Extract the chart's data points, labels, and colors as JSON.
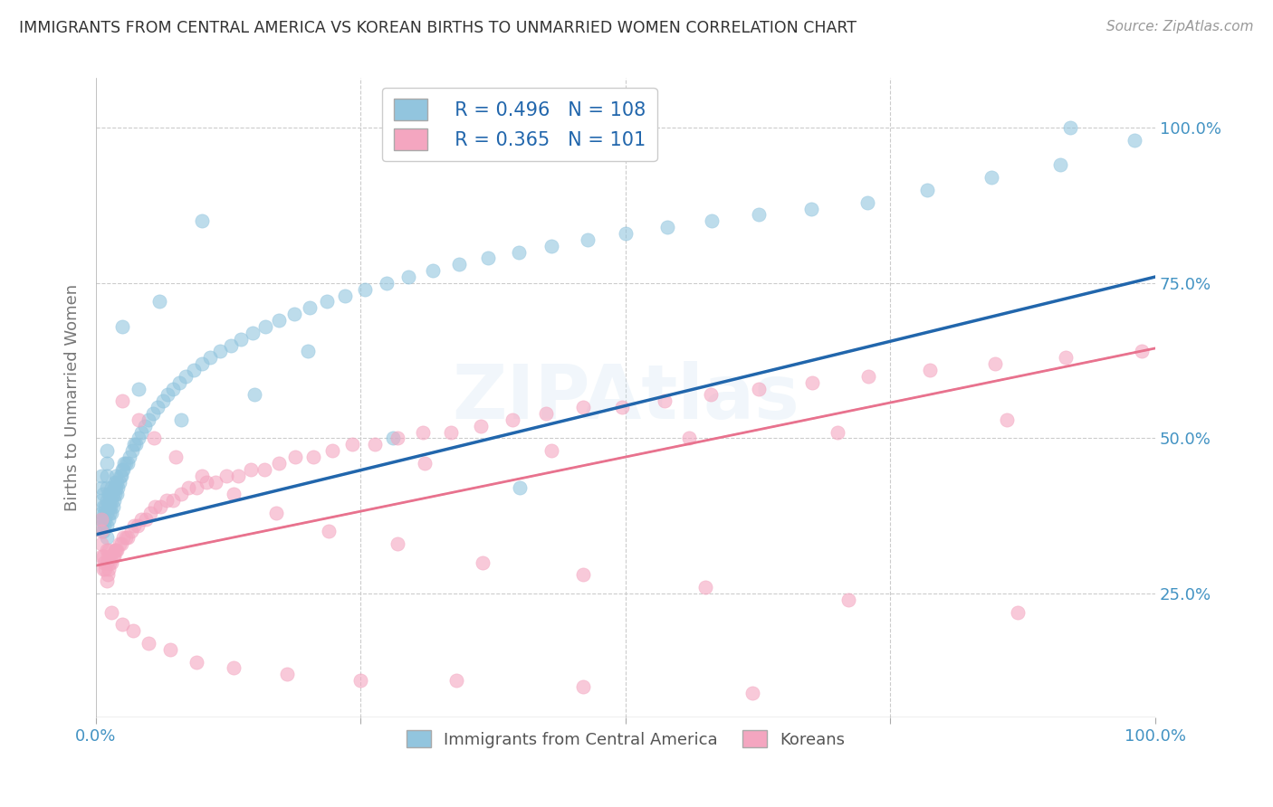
{
  "title": "IMMIGRANTS FROM CENTRAL AMERICA VS KOREAN BIRTHS TO UNMARRIED WOMEN CORRELATION CHART",
  "source": "Source: ZipAtlas.com",
  "ylabel": "Births to Unmarried Women",
  "xlim": [
    0.0,
    1.0
  ],
  "ylim": [
    0.05,
    1.08
  ],
  "x_tick_labels": [
    "0.0%",
    "",
    "",
    "",
    "100.0%"
  ],
  "x_tick_positions": [
    0.0,
    0.25,
    0.5,
    0.75,
    1.0
  ],
  "y_tick_labels_right": [
    "100.0%",
    "75.0%",
    "50.0%",
    "25.0%"
  ],
  "y_tick_positions_right": [
    1.0,
    0.75,
    0.5,
    0.25
  ],
  "blue_R": 0.496,
  "blue_N": 108,
  "pink_R": 0.365,
  "pink_N": 101,
  "blue_color": "#92c5de",
  "pink_color": "#f4a6c0",
  "blue_line_color": "#2166ac",
  "pink_line_color": "#e8728e",
  "axis_label_color": "#4393c3",
  "grid_color": "#cccccc",
  "background_color": "#ffffff",
  "title_color": "#333333",
  "legend_label_blue": "Immigrants from Central America",
  "legend_label_pink": "Koreans",
  "blue_line_start_y": 0.345,
  "blue_line_end_y": 0.76,
  "pink_line_start_y": 0.295,
  "pink_line_end_y": 0.645,
  "blue_points_x": [
    0.005,
    0.005,
    0.005,
    0.005,
    0.005,
    0.005,
    0.007,
    0.007,
    0.007,
    0.007,
    0.008,
    0.008,
    0.009,
    0.009,
    0.01,
    0.01,
    0.01,
    0.01,
    0.01,
    0.01,
    0.01,
    0.01,
    0.012,
    0.012,
    0.012,
    0.013,
    0.013,
    0.014,
    0.014,
    0.015,
    0.015,
    0.015,
    0.016,
    0.016,
    0.017,
    0.017,
    0.018,
    0.018,
    0.019,
    0.019,
    0.02,
    0.02,
    0.021,
    0.022,
    0.023,
    0.024,
    0.025,
    0.026,
    0.027,
    0.028,
    0.03,
    0.032,
    0.034,
    0.036,
    0.038,
    0.04,
    0.043,
    0.046,
    0.05,
    0.054,
    0.058,
    0.063,
    0.068,
    0.073,
    0.079,
    0.085,
    0.092,
    0.1,
    0.108,
    0.117,
    0.127,
    0.137,
    0.148,
    0.16,
    0.173,
    0.187,
    0.202,
    0.218,
    0.235,
    0.254,
    0.274,
    0.295,
    0.318,
    0.343,
    0.37,
    0.399,
    0.43,
    0.464,
    0.5,
    0.539,
    0.581,
    0.626,
    0.675,
    0.728,
    0.785,
    0.845,
    0.91,
    0.98,
    0.025,
    0.04,
    0.06,
    0.08,
    0.1,
    0.15,
    0.2,
    0.28,
    0.4,
    0.92
  ],
  "blue_points_y": [
    0.36,
    0.37,
    0.38,
    0.4,
    0.42,
    0.44,
    0.35,
    0.37,
    0.39,
    0.41,
    0.36,
    0.38,
    0.37,
    0.39,
    0.34,
    0.36,
    0.38,
    0.4,
    0.42,
    0.44,
    0.46,
    0.48,
    0.37,
    0.39,
    0.41,
    0.38,
    0.4,
    0.39,
    0.41,
    0.38,
    0.4,
    0.42,
    0.39,
    0.41,
    0.4,
    0.42,
    0.41,
    0.43,
    0.42,
    0.44,
    0.41,
    0.43,
    0.42,
    0.43,
    0.44,
    0.44,
    0.45,
    0.45,
    0.46,
    0.46,
    0.46,
    0.47,
    0.48,
    0.49,
    0.49,
    0.5,
    0.51,
    0.52,
    0.53,
    0.54,
    0.55,
    0.56,
    0.57,
    0.58,
    0.59,
    0.6,
    0.61,
    0.62,
    0.63,
    0.64,
    0.65,
    0.66,
    0.67,
    0.68,
    0.69,
    0.7,
    0.71,
    0.72,
    0.73,
    0.74,
    0.75,
    0.76,
    0.77,
    0.78,
    0.79,
    0.8,
    0.81,
    0.82,
    0.83,
    0.84,
    0.85,
    0.86,
    0.87,
    0.88,
    0.9,
    0.92,
    0.94,
    0.98,
    0.68,
    0.58,
    0.72,
    0.53,
    0.85,
    0.57,
    0.64,
    0.5,
    0.42,
    1.0
  ],
  "pink_points_x": [
    0.005,
    0.005,
    0.005,
    0.005,
    0.007,
    0.007,
    0.008,
    0.009,
    0.01,
    0.01,
    0.01,
    0.011,
    0.011,
    0.012,
    0.012,
    0.013,
    0.014,
    0.015,
    0.016,
    0.017,
    0.018,
    0.019,
    0.02,
    0.022,
    0.024,
    0.026,
    0.028,
    0.03,
    0.033,
    0.036,
    0.039,
    0.043,
    0.047,
    0.051,
    0.056,
    0.061,
    0.067,
    0.073,
    0.08,
    0.087,
    0.095,
    0.104,
    0.113,
    0.123,
    0.134,
    0.146,
    0.159,
    0.173,
    0.188,
    0.205,
    0.223,
    0.242,
    0.263,
    0.285,
    0.309,
    0.335,
    0.363,
    0.393,
    0.425,
    0.46,
    0.497,
    0.537,
    0.58,
    0.626,
    0.676,
    0.729,
    0.787,
    0.849,
    0.915,
    0.987,
    0.015,
    0.025,
    0.035,
    0.05,
    0.07,
    0.095,
    0.13,
    0.18,
    0.25,
    0.34,
    0.46,
    0.62,
    0.025,
    0.04,
    0.055,
    0.075,
    0.1,
    0.13,
    0.17,
    0.22,
    0.285,
    0.365,
    0.46,
    0.575,
    0.71,
    0.87,
    0.31,
    0.43,
    0.56,
    0.7,
    0.86
  ],
  "pink_points_y": [
    0.31,
    0.33,
    0.35,
    0.37,
    0.29,
    0.31,
    0.3,
    0.29,
    0.27,
    0.3,
    0.32,
    0.28,
    0.31,
    0.29,
    0.32,
    0.3,
    0.31,
    0.3,
    0.31,
    0.31,
    0.32,
    0.32,
    0.32,
    0.33,
    0.33,
    0.34,
    0.34,
    0.34,
    0.35,
    0.36,
    0.36,
    0.37,
    0.37,
    0.38,
    0.39,
    0.39,
    0.4,
    0.4,
    0.41,
    0.42,
    0.42,
    0.43,
    0.43,
    0.44,
    0.44,
    0.45,
    0.45,
    0.46,
    0.47,
    0.47,
    0.48,
    0.49,
    0.49,
    0.5,
    0.51,
    0.51,
    0.52,
    0.53,
    0.54,
    0.55,
    0.55,
    0.56,
    0.57,
    0.58,
    0.59,
    0.6,
    0.61,
    0.62,
    0.63,
    0.64,
    0.22,
    0.2,
    0.19,
    0.17,
    0.16,
    0.14,
    0.13,
    0.12,
    0.11,
    0.11,
    0.1,
    0.09,
    0.56,
    0.53,
    0.5,
    0.47,
    0.44,
    0.41,
    0.38,
    0.35,
    0.33,
    0.3,
    0.28,
    0.26,
    0.24,
    0.22,
    0.46,
    0.48,
    0.5,
    0.51,
    0.53
  ]
}
